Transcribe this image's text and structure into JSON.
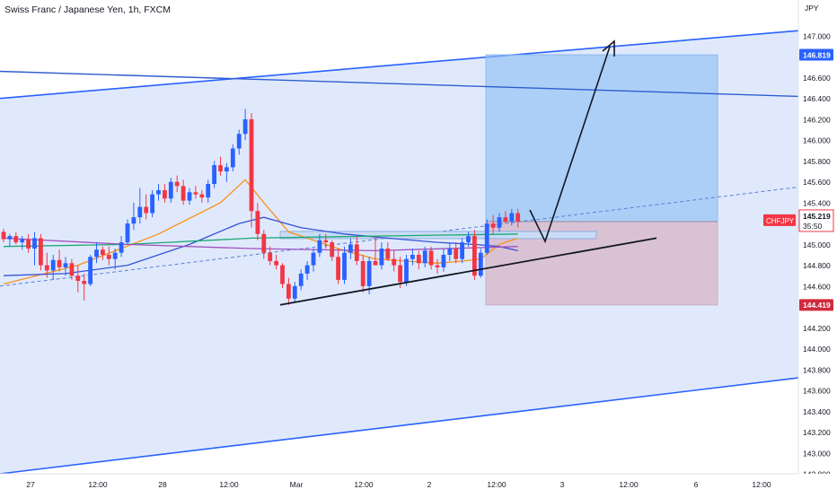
{
  "chart_data": {
    "type": "candlestick",
    "title": "Swiss Franc / Japanese Yen, 1h, FXCM",
    "currency": "JPY",
    "symbol": "CHFJPY",
    "ylim": [
      142.8,
      147.2
    ],
    "y_ticks": [
      "142.800",
      "143.000",
      "143.200",
      "143.400",
      "143.600",
      "143.800",
      "144.000",
      "144.200",
      "144.400",
      "144.600",
      "144.800",
      "145.000",
      "145.200",
      "145.400",
      "145.600",
      "145.800",
      "146.000",
      "146.200",
      "146.400",
      "146.600",
      "146.800",
      "147.000"
    ],
    "x_tick_labels": [
      "27",
      "12:00",
      "28",
      "12:00",
      "Mar",
      "12:00",
      "2",
      "12:00",
      "3",
      "12:00",
      "6",
      "12:00"
    ],
    "last_price": {
      "value": "145.219",
      "label": "CHFJPY",
      "countdown": "35:50"
    },
    "target_price": "146.819",
    "stop_price": "144.419",
    "colors": {
      "up": "#2962ff",
      "down": "#f23645",
      "fast_ma": "#f7931a",
      "mid_ma": "#3453d8",
      "slow_ma": "#1aa873",
      "slowest_ma": "#a050c0",
      "target_zone": "#90c2f5",
      "stop_zone": "#d8b4c8",
      "channel": "#2962ff"
    },
    "candles": [
      {
        "o": 145.12,
        "h": 145.15,
        "l": 145.02,
        "c": 145.05
      },
      {
        "o": 145.05,
        "h": 145.1,
        "l": 144.98,
        "c": 145.08
      },
      {
        "o": 145.08,
        "h": 145.12,
        "l": 145.0,
        "c": 145.02
      },
      {
        "o": 145.02,
        "h": 145.08,
        "l": 144.95,
        "c": 145.05
      },
      {
        "o": 145.05,
        "h": 145.1,
        "l": 144.92,
        "c": 144.96
      },
      {
        "o": 144.96,
        "h": 145.12,
        "l": 144.8,
        "c": 145.06
      },
      {
        "o": 145.06,
        "h": 145.1,
        "l": 144.75,
        "c": 144.8
      },
      {
        "o": 144.8,
        "h": 144.92,
        "l": 144.68,
        "c": 144.75
      },
      {
        "o": 144.75,
        "h": 144.9,
        "l": 144.66,
        "c": 144.85
      },
      {
        "o": 144.85,
        "h": 144.95,
        "l": 144.74,
        "c": 144.78
      },
      {
        "o": 144.78,
        "h": 144.88,
        "l": 144.7,
        "c": 144.82
      },
      {
        "o": 144.82,
        "h": 144.86,
        "l": 144.66,
        "c": 144.7
      },
      {
        "o": 144.7,
        "h": 144.8,
        "l": 144.54,
        "c": 144.65
      },
      {
        "o": 144.65,
        "h": 144.72,
        "l": 144.46,
        "c": 144.62
      },
      {
        "o": 144.62,
        "h": 144.9,
        "l": 144.6,
        "c": 144.88
      },
      {
        "o": 144.88,
        "h": 145.02,
        "l": 144.82,
        "c": 144.95
      },
      {
        "o": 144.95,
        "h": 144.98,
        "l": 144.85,
        "c": 144.9
      },
      {
        "o": 144.9,
        "h": 144.98,
        "l": 144.8,
        "c": 144.86
      },
      {
        "o": 144.86,
        "h": 144.96,
        "l": 144.76,
        "c": 144.92
      },
      {
        "o": 144.92,
        "h": 145.08,
        "l": 144.88,
        "c": 145.02
      },
      {
        "o": 145.02,
        "h": 145.24,
        "l": 145.0,
        "c": 145.2
      },
      {
        "o": 145.2,
        "h": 145.4,
        "l": 145.14,
        "c": 145.26
      },
      {
        "o": 145.26,
        "h": 145.54,
        "l": 145.2,
        "c": 145.36
      },
      {
        "o": 145.36,
        "h": 145.48,
        "l": 145.24,
        "c": 145.3
      },
      {
        "o": 145.3,
        "h": 145.52,
        "l": 145.26,
        "c": 145.48
      },
      {
        "o": 145.48,
        "h": 145.58,
        "l": 145.42,
        "c": 145.52
      },
      {
        "o": 145.52,
        "h": 145.58,
        "l": 145.4,
        "c": 145.44
      },
      {
        "o": 145.44,
        "h": 145.64,
        "l": 145.4,
        "c": 145.6
      },
      {
        "o": 145.6,
        "h": 145.66,
        "l": 145.5,
        "c": 145.56
      },
      {
        "o": 145.56,
        "h": 145.62,
        "l": 145.38,
        "c": 145.42
      },
      {
        "o": 145.42,
        "h": 145.54,
        "l": 145.38,
        "c": 145.5
      },
      {
        "o": 145.5,
        "h": 145.56,
        "l": 145.44,
        "c": 145.48
      },
      {
        "o": 145.48,
        "h": 145.52,
        "l": 145.4,
        "c": 145.45
      },
      {
        "o": 145.45,
        "h": 145.62,
        "l": 145.4,
        "c": 145.58
      },
      {
        "o": 145.58,
        "h": 145.8,
        "l": 145.54,
        "c": 145.76
      },
      {
        "o": 145.76,
        "h": 145.84,
        "l": 145.66,
        "c": 145.7
      },
      {
        "o": 145.7,
        "h": 145.78,
        "l": 145.6,
        "c": 145.74
      },
      {
        "o": 145.74,
        "h": 145.96,
        "l": 145.7,
        "c": 145.92
      },
      {
        "o": 145.92,
        "h": 146.1,
        "l": 145.86,
        "c": 146.06
      },
      {
        "o": 146.06,
        "h": 146.3,
        "l": 146.0,
        "c": 146.2
      },
      {
        "o": 146.2,
        "h": 146.26,
        "l": 145.16,
        "c": 145.32
      },
      {
        "o": 145.32,
        "h": 145.4,
        "l": 145.04,
        "c": 145.1
      },
      {
        "o": 145.1,
        "h": 145.14,
        "l": 144.86,
        "c": 144.92
      },
      {
        "o": 144.92,
        "h": 144.98,
        "l": 144.8,
        "c": 144.84
      },
      {
        "o": 144.84,
        "h": 144.9,
        "l": 144.76,
        "c": 144.8
      },
      {
        "o": 144.8,
        "h": 144.82,
        "l": 144.58,
        "c": 144.62
      },
      {
        "o": 144.62,
        "h": 144.68,
        "l": 144.42,
        "c": 144.48
      },
      {
        "o": 144.48,
        "h": 144.64,
        "l": 144.44,
        "c": 144.6
      },
      {
        "o": 144.6,
        "h": 144.76,
        "l": 144.56,
        "c": 144.72
      },
      {
        "o": 144.72,
        "h": 144.84,
        "l": 144.66,
        "c": 144.8
      },
      {
        "o": 144.8,
        "h": 144.96,
        "l": 144.74,
        "c": 144.92
      },
      {
        "o": 144.92,
        "h": 145.1,
        "l": 144.88,
        "c": 145.04
      },
      {
        "o": 145.04,
        "h": 145.1,
        "l": 144.96,
        "c": 145.02
      },
      {
        "o": 145.02,
        "h": 145.04,
        "l": 144.84,
        "c": 144.88
      },
      {
        "o": 144.88,
        "h": 144.96,
        "l": 144.62,
        "c": 144.66
      },
      {
        "o": 144.66,
        "h": 144.98,
        "l": 144.62,
        "c": 144.92
      },
      {
        "o": 144.92,
        "h": 145.06,
        "l": 144.86,
        "c": 145.0
      },
      {
        "o": 145.0,
        "h": 145.08,
        "l": 144.8,
        "c": 144.84
      },
      {
        "o": 144.84,
        "h": 144.9,
        "l": 144.54,
        "c": 144.6
      },
      {
        "o": 144.6,
        "h": 144.88,
        "l": 144.52,
        "c": 144.84
      },
      {
        "o": 144.84,
        "h": 145.08,
        "l": 144.8,
        "c": 144.8
      },
      {
        "o": 144.8,
        "h": 145.02,
        "l": 144.76,
        "c": 144.96
      },
      {
        "o": 144.96,
        "h": 145.02,
        "l": 144.84,
        "c": 144.86
      },
      {
        "o": 144.86,
        "h": 144.94,
        "l": 144.74,
        "c": 144.8
      },
      {
        "o": 144.8,
        "h": 144.88,
        "l": 144.58,
        "c": 144.64
      },
      {
        "o": 144.64,
        "h": 144.9,
        "l": 144.6,
        "c": 144.86
      },
      {
        "o": 144.86,
        "h": 144.96,
        "l": 144.8,
        "c": 144.9
      },
      {
        "o": 144.9,
        "h": 144.94,
        "l": 144.76,
        "c": 144.82
      },
      {
        "o": 144.82,
        "h": 144.98,
        "l": 144.78,
        "c": 144.94
      },
      {
        "o": 144.94,
        "h": 144.98,
        "l": 144.76,
        "c": 144.8
      },
      {
        "o": 144.8,
        "h": 144.86,
        "l": 144.72,
        "c": 144.78
      },
      {
        "o": 144.78,
        "h": 144.96,
        "l": 144.74,
        "c": 144.9
      },
      {
        "o": 144.9,
        "h": 145.02,
        "l": 144.84,
        "c": 144.96
      },
      {
        "o": 144.96,
        "h": 145.02,
        "l": 144.82,
        "c": 144.86
      },
      {
        "o": 144.86,
        "h": 145.06,
        "l": 144.82,
        "c": 145.02
      },
      {
        "o": 145.02,
        "h": 145.12,
        "l": 144.98,
        "c": 145.08
      },
      {
        "o": 145.08,
        "h": 145.14,
        "l": 144.66,
        "c": 144.7
      },
      {
        "o": 144.7,
        "h": 144.96,
        "l": 144.68,
        "c": 144.92
      },
      {
        "o": 144.92,
        "h": 145.24,
        "l": 144.9,
        "c": 145.2
      },
      {
        "o": 145.2,
        "h": 145.28,
        "l": 145.1,
        "c": 145.16
      },
      {
        "o": 145.16,
        "h": 145.3,
        "l": 145.12,
        "c": 145.26
      },
      {
        "o": 145.26,
        "h": 145.32,
        "l": 145.2,
        "c": 145.22
      },
      {
        "o": 145.22,
        "h": 145.34,
        "l": 145.18,
        "c": 145.3
      },
      {
        "o": 145.3,
        "h": 145.34,
        "l": 145.16,
        "c": 145.219
      }
    ],
    "moving_averages": [
      {
        "name": "",
        "color": "#f7931a",
        "values": [
          [
            0,
            144.62
          ],
          [
            12,
            144.8
          ],
          [
            25,
            145.1
          ],
          [
            35,
            145.4
          ],
          [
            39,
            145.62
          ],
          [
            42,
            145.4
          ],
          [
            46,
            145.12
          ],
          [
            50,
            145.04
          ],
          [
            55,
            144.94
          ],
          [
            60,
            144.86
          ],
          [
            65,
            144.84
          ],
          [
            70,
            144.82
          ],
          [
            74,
            144.84
          ],
          [
            77,
            144.86
          ],
          [
            80,
            145.0
          ],
          [
            83,
            145.06
          ]
        ]
      },
      {
        "name": "",
        "color": "#3453d8",
        "values": [
          [
            0,
            144.7
          ],
          [
            10,
            144.72
          ],
          [
            20,
            144.8
          ],
          [
            30,
            145.0
          ],
          [
            38,
            145.2
          ],
          [
            42,
            145.26
          ],
          [
            48,
            145.16
          ],
          [
            55,
            145.1
          ],
          [
            62,
            145.06
          ],
          [
            70,
            145.02
          ],
          [
            76,
            145.0
          ],
          [
            80,
            144.98
          ],
          [
            83,
            144.94
          ]
        ]
      },
      {
        "name": "",
        "color": "#1aa873",
        "values": [
          [
            0,
            144.98
          ],
          [
            20,
            145.0
          ],
          [
            40,
            145.06
          ],
          [
            60,
            145.08
          ],
          [
            83,
            145.1
          ]
        ]
      },
      {
        "name": "",
        "color": "#a050c0",
        "values": [
          [
            0,
            145.06
          ],
          [
            20,
            145.0
          ],
          [
            40,
            144.96
          ],
          [
            60,
            144.94
          ],
          [
            83,
            144.98
          ]
        ]
      }
    ],
    "channel": {
      "upper_start": 146.4,
      "upper_end": 147.2,
      "lower_start": 142.8,
      "lower_end": 143.72
    },
    "horizontal_trend": {
      "start": 146.66,
      "end": 146.42
    },
    "support_line": {
      "from": [
        48,
        144.42
      ],
      "to": [
        110,
        145.06
      ]
    },
    "dashed_line": {
      "from": [
        0,
        144.6
      ],
      "to": [
        132,
        145.55
      ]
    },
    "target_box": {
      "from_bar": 82,
      "to_bar": 124,
      "top": 146.819,
      "entry": 145.219,
      "bottom": 144.419
    },
    "path_arrow": [
      [
        90,
        145.33
      ],
      [
        95,
        145.02
      ],
      [
        101,
        146.59
      ],
      [
        104,
        146.96
      ]
    ],
    "zone_marker": {
      "from_bar": 50,
      "to_bar": 100,
      "top": 145.09,
      "bottom": 145.03
    }
  }
}
